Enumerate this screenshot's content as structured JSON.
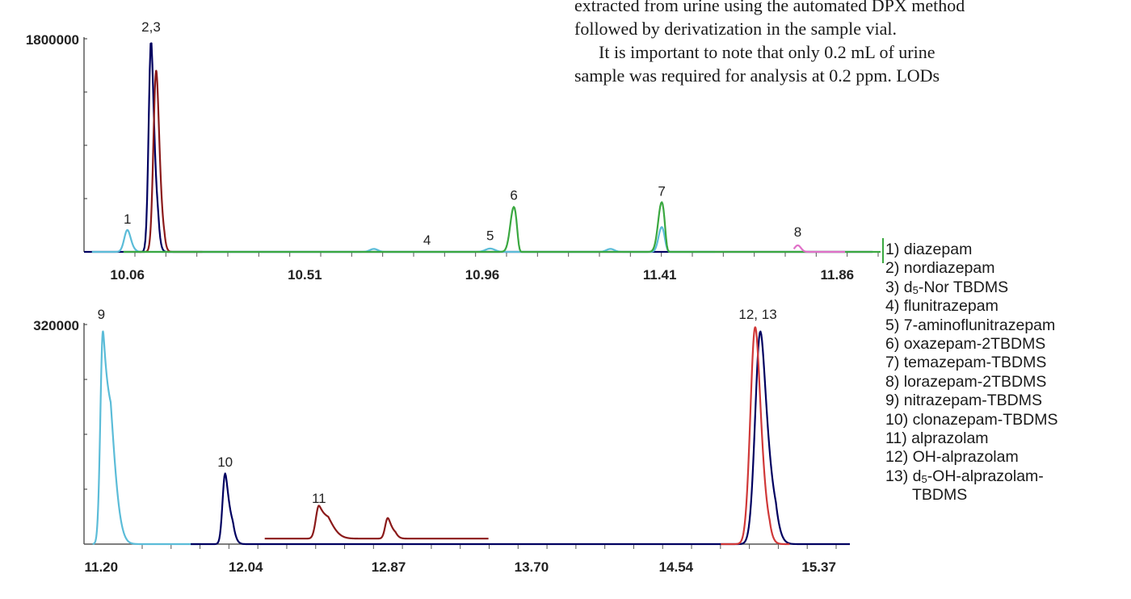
{
  "text": {
    "line1": "extracted from urine using the automated DPX method",
    "line2": "followed by derivatization in the sample vial.",
    "line3": "It is important to note that only 0.2 mL of urine",
    "line4": "sample was required for analysis at 0.2 ppm. LODs"
  },
  "legend": [
    {
      "pre": "1) diazepam"
    },
    {
      "pre": "2) nordiazepam"
    },
    {
      "pre": "3) d",
      "sub": "5",
      "post": "-Nor TBDMS"
    },
    {
      "pre": "4) flunitrazepam"
    },
    {
      "pre": "5) 7-aminoflunitrazepam"
    },
    {
      "pre": "6) oxazepam-2TBDMS"
    },
    {
      "pre": "7) temazepam-TBDMS"
    },
    {
      "pre": "8) lorazepam-2TBDMS"
    },
    {
      "pre": "9) nitrazepam-TBDMS"
    },
    {
      "pre": "10) clonazepam-TBDMS"
    },
    {
      "pre": "11) alprazolam"
    },
    {
      "pre": "12) OH-alprazolam"
    },
    {
      "pre": "13) d",
      "sub": "5",
      "post": "-OH-alprazolam-"
    },
    {
      "pre": "TBDMS",
      "indent": true
    }
  ],
  "chart_data": [
    {
      "type": "line",
      "xlim": [
        9.95,
        11.97
      ],
      "ylim": [
        0,
        1800000
      ],
      "yticks": [
        1800000
      ],
      "ytick_labels": [
        "1800000"
      ],
      "xticks": [
        10.06,
        10.51,
        10.96,
        11.41,
        11.86
      ],
      "xtick_labels": [
        "10.06",
        "10.51",
        "10.96",
        "11.41",
        "11.86"
      ],
      "grid": false,
      "series": [
        {
          "color": "#000060",
          "baseline_x": [
            9.95,
            11.95
          ],
          "peaks": [
            {
              "x": 10.12,
              "y": 1790000,
              "w": 0.006,
              "tail": 0.01
            }
          ]
        },
        {
          "color": "#8b1a1a",
          "baseline_x": [
            10.09,
            10.25
          ],
          "peaks": [
            {
              "x": 10.133,
              "y": 1530000,
              "w": 0.007,
              "tail": 0.01
            }
          ]
        },
        {
          "color": "#5bbcd8",
          "baseline_x": [
            9.97,
            11.55
          ],
          "peaks": [
            {
              "x": 10.06,
              "y": 185000,
              "w": 0.008,
              "tail": 0.01
            },
            {
              "x": 10.685,
              "y": 25000,
              "w": 0.01
            },
            {
              "x": 10.98,
              "y": 28000,
              "w": 0.012
            },
            {
              "x": 11.285,
              "y": 25000,
              "w": 0.01
            },
            {
              "x": 11.415,
              "y": 210000,
              "w": 0.008,
              "tail": 0.006
            }
          ]
        },
        {
          "color": "#3aa840",
          "baseline_x": [
            10.05,
            11.97
          ],
          "peaks": [
            {
              "x": 11.04,
              "y": 380000,
              "w": 0.009,
              "tail": 0.004
            },
            {
              "x": 11.415,
              "y": 420000,
              "w": 0.009,
              "tail": 0.004
            }
          ]
        },
        {
          "color": "#e070c8",
          "baseline_x": [
            11.75,
            11.88
          ],
          "peaks": [
            {
              "x": 11.76,
              "y": 55000,
              "w": 0.008
            }
          ]
        }
      ],
      "annotations": [
        {
          "text": "2,3",
          "x": 10.12,
          "y": 1860000
        },
        {
          "text": "1",
          "x": 10.06,
          "y": 240000
        },
        {
          "text": "4",
          "x": 10.82,
          "y": 60000
        },
        {
          "text": "5",
          "x": 10.98,
          "y": 100000
        },
        {
          "text": "6",
          "x": 11.04,
          "y": 440000
        },
        {
          "text": "7",
          "x": 11.415,
          "y": 475000
        },
        {
          "text": "8",
          "x": 11.76,
          "y": 130000
        }
      ]
    },
    {
      "type": "line",
      "xlim": [
        11.1,
        15.55
      ],
      "ylim": [
        0,
        320000
      ],
      "yticks": [
        320000
      ],
      "ytick_labels": [
        "320000"
      ],
      "xticks": [
        11.2,
        12.04,
        12.87,
        13.7,
        14.54,
        15.37
      ],
      "xtick_labels": [
        "11.20",
        "12.04",
        "12.87",
        "13.70",
        "14.54",
        "15.37"
      ],
      "grid": false,
      "series": [
        {
          "color": "#5bbcd8",
          "baseline_x": [
            11.15,
            11.78
          ],
          "peaks": [
            {
              "x": 11.21,
              "y": 310000,
              "w": 0.015,
              "tail": 0.05
            }
          ]
        },
        {
          "color": "#000060",
          "baseline_x": [
            11.72,
            15.55
          ],
          "peaks": [
            {
              "x": 11.92,
              "y": 103000,
              "w": 0.015,
              "tail": 0.03
            },
            {
              "x": 15.03,
              "y": 310000,
              "w": 0.03,
              "tail": 0.05
            }
          ]
        },
        {
          "color": "#8b1a1a",
          "baseline_x": [
            12.15,
            13.45
          ],
          "offset": 8000,
          "peaks": [
            {
              "x": 12.465,
              "y": 48000,
              "w": 0.018,
              "tail": 0.06
            },
            {
              "x": 12.865,
              "y": 30000,
              "w": 0.015,
              "tail": 0.03
            }
          ]
        },
        {
          "color": "#d03838",
          "baseline_x": [
            14.8,
            15.2
          ],
          "peaks": [
            {
              "x": 15.0,
              "y": 316000,
              "w": 0.028,
              "tail": 0.04
            }
          ]
        }
      ],
      "annotations": [
        {
          "text": "9",
          "x": 11.2,
          "y": 328000
        },
        {
          "text": "10",
          "x": 11.92,
          "y": 113000
        },
        {
          "text": "11",
          "x": 12.465,
          "y": 60000
        },
        {
          "text": "12, 13",
          "x": 15.015,
          "y": 328000
        }
      ]
    }
  ]
}
